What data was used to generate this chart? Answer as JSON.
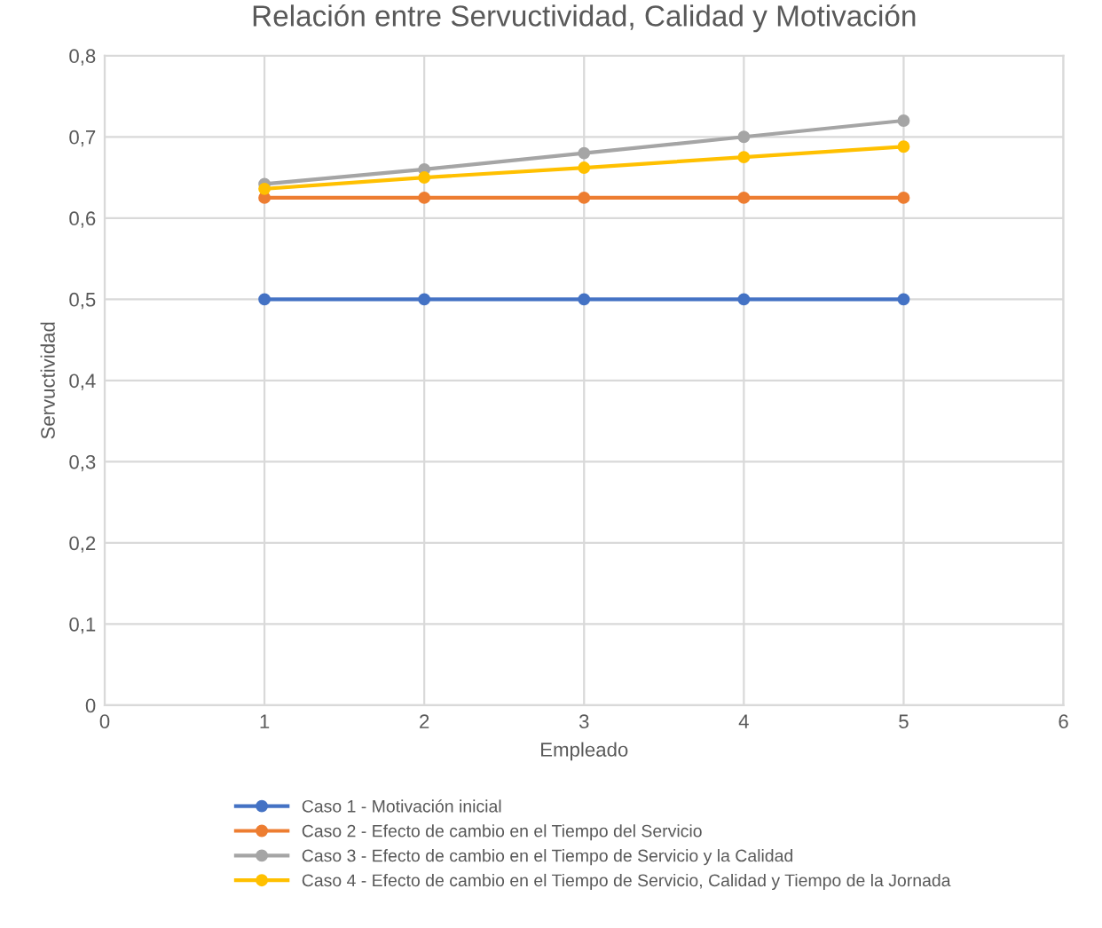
{
  "chart_data": {
    "type": "line",
    "title": "Relación entre Servuctividad, Calidad y Motivación",
    "xlabel": "Empleado",
    "ylabel": "Servuctividad",
    "x": [
      1,
      2,
      3,
      4,
      5
    ],
    "series": [
      {
        "name": "Caso 1 - Motivación inicial",
        "color": "#4472c4",
        "values": [
          0.5,
          0.5,
          0.5,
          0.5,
          0.5
        ]
      },
      {
        "name": "Caso 2 - Efecto de cambio en el Tiempo del Servicio",
        "color": "#ed7d31",
        "values": [
          0.625,
          0.625,
          0.625,
          0.625,
          0.625
        ]
      },
      {
        "name": "Caso 3 - Efecto de cambio en el Tiempo de Servicio y la Calidad",
        "color": "#a5a5a5",
        "values": [
          0.642,
          0.66,
          0.68,
          0.7,
          0.72
        ]
      },
      {
        "name": "Caso 4 - Efecto de cambio en el Tiempo de Servicio, Calidad y Tiempo de la Jornada",
        "color": "#ffc000",
        "values": [
          0.636,
          0.65,
          0.662,
          0.675,
          0.688
        ]
      }
    ],
    "xlim": [
      0,
      6
    ],
    "xticks": [
      0,
      1,
      2,
      3,
      4,
      5,
      6
    ],
    "ylim": [
      0,
      0.8
    ],
    "yticks": [
      {
        "value": 0,
        "label": "0"
      },
      {
        "value": 0.1,
        "label": "0,1"
      },
      {
        "value": 0.2,
        "label": "0,2"
      },
      {
        "value": 0.3,
        "label": "0,3"
      },
      {
        "value": 0.4,
        "label": "0,4"
      },
      {
        "value": 0.5,
        "label": "0,5"
      },
      {
        "value": 0.6,
        "label": "0,6"
      },
      {
        "value": 0.7,
        "label": "0,7"
      },
      {
        "value": 0.8,
        "label": "0,8"
      }
    ],
    "grid": true,
    "legend": "bottom",
    "marker": "circle",
    "line_style": "solid"
  }
}
